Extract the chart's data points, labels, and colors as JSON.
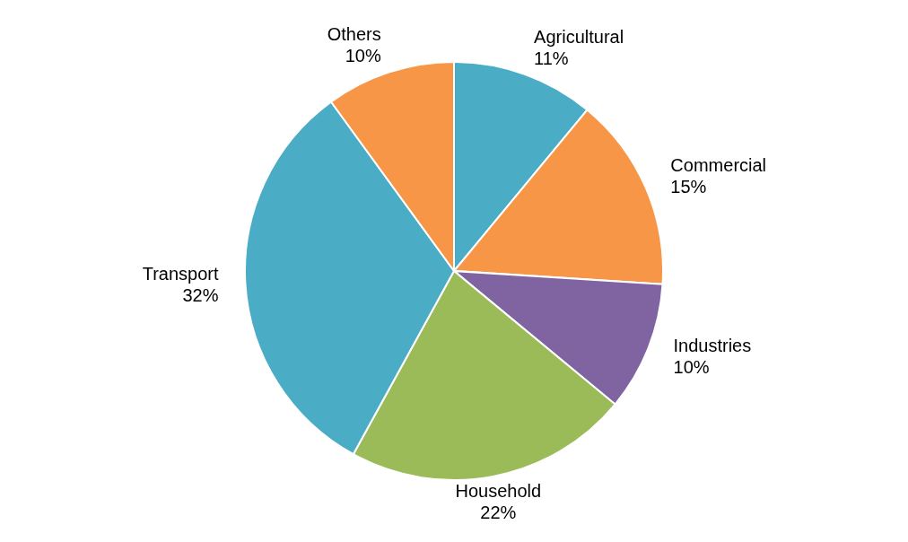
{
  "chart_data": {
    "type": "pie",
    "categories": [
      "Agricultural",
      "Commercial",
      "Industries",
      "Household",
      "Transport",
      "Others"
    ],
    "values": [
      11,
      15,
      10,
      22,
      32,
      10
    ],
    "colors": [
      "#4bacc6",
      "#f79646",
      "#8064a2",
      "#9bbb59",
      "#4bacc6",
      "#f79646"
    ],
    "value_labels": [
      "11%",
      "15%",
      "10%",
      "22%",
      "32%",
      "10%"
    ],
    "legend": false
  }
}
